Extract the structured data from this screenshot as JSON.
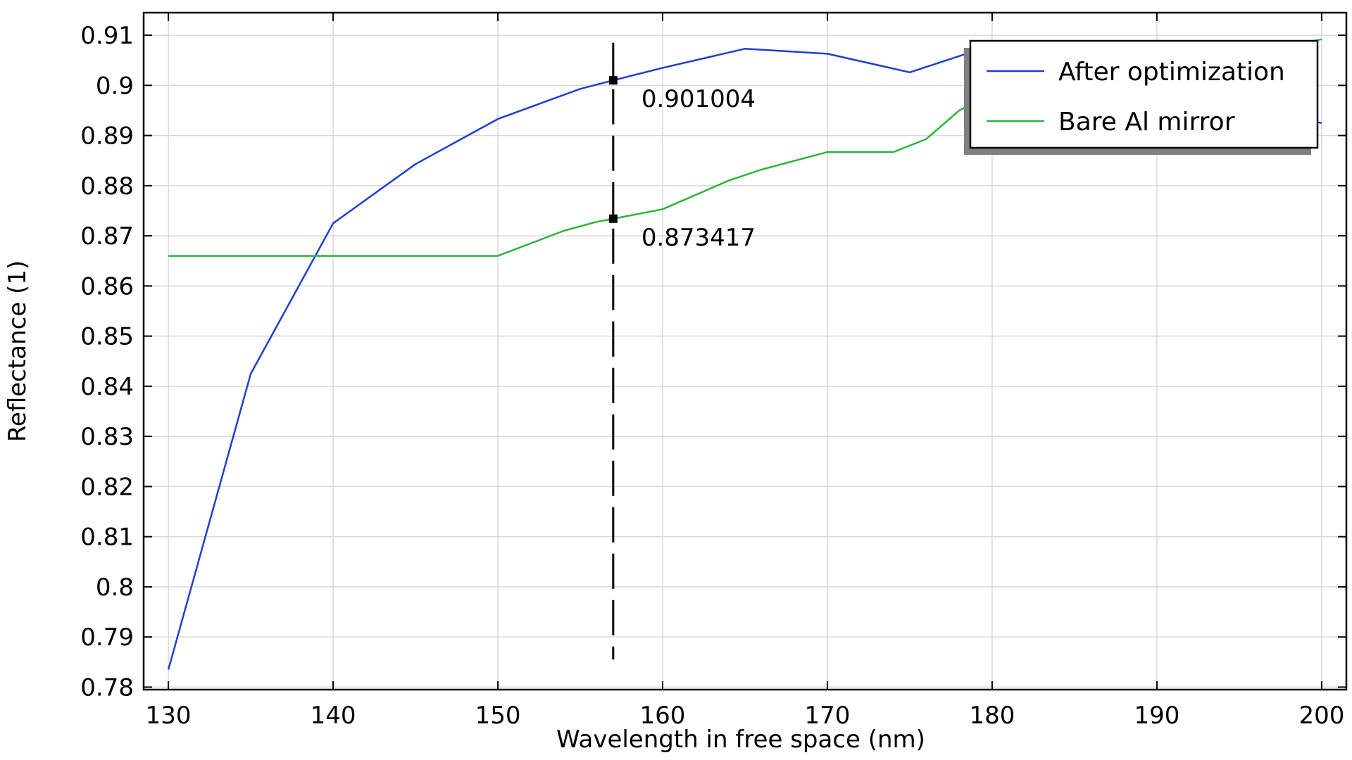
{
  "chart_data": {
    "type": "line",
    "title": "",
    "xlabel": "Wavelength in free space (nm)",
    "ylabel": "Reflectance (1)",
    "xlim": [
      128.5,
      201.5
    ],
    "ylim": [
      0.7795,
      0.9145
    ],
    "xticks": [
      130,
      140,
      150,
      160,
      170,
      180,
      190,
      200
    ],
    "xtick_labels": [
      "130",
      "140",
      "150",
      "160",
      "170",
      "180",
      "190",
      "200"
    ],
    "yticks": [
      0.78,
      0.79,
      0.8,
      0.81,
      0.82,
      0.83,
      0.84,
      0.85,
      0.86,
      0.87,
      0.88,
      0.89,
      0.9,
      0.91
    ],
    "ytick_labels": [
      "0.78",
      "0.79",
      "0.8",
      "0.81",
      "0.82",
      "0.83",
      "0.84",
      "0.85",
      "0.86",
      "0.87",
      "0.88",
      "0.89",
      "0.9",
      "0.91"
    ],
    "grid": true,
    "legend_position": "top-right",
    "series": [
      {
        "name": "After optimization",
        "color": "#1f3fcf",
        "x": [
          130,
          135,
          140,
          145,
          150,
          155,
          157,
          160,
          165,
          170,
          175,
          180,
          185,
          190,
          195,
          200
        ],
        "y": [
          0.7835,
          0.8425,
          0.8725,
          0.8843,
          0.8933,
          0.8993,
          0.901,
          0.9035,
          0.9073,
          0.9063,
          0.9026,
          0.908,
          0.905,
          0.9,
          0.896,
          0.8925
        ]
      },
      {
        "name": "Bare Al mirror",
        "color": "#2db33d",
        "x": [
          130,
          135,
          140,
          145,
          150,
          154,
          156,
          157,
          160,
          164,
          166,
          170,
          172,
          174,
          176,
          178,
          180,
          185,
          190,
          195,
          200
        ],
        "y": [
          0.866,
          0.866,
          0.866,
          0.866,
          0.866,
          0.871,
          0.8728,
          0.8734,
          0.8753,
          0.881,
          0.8832,
          0.8867,
          0.8867,
          0.8867,
          0.8893,
          0.895,
          0.8985,
          0.902,
          0.904,
          0.906,
          0.9092
        ]
      }
    ],
    "cursor": {
      "x": 157,
      "y_range": [
        0.7855,
        0.9085
      ],
      "markers": [
        {
          "y": 0.901004,
          "label": "0.901004"
        },
        {
          "y": 0.873417,
          "label": "0.873417"
        }
      ]
    }
  }
}
